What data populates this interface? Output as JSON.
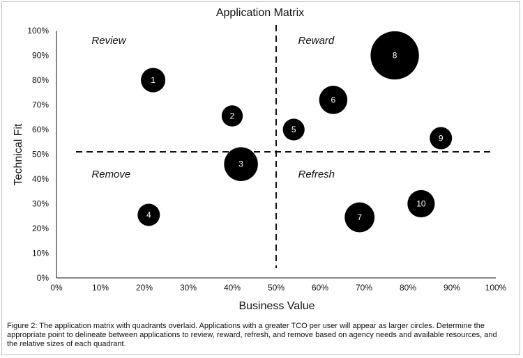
{
  "chart_data": {
    "type": "scatter",
    "title": "Application Matrix",
    "xlabel": "Business Value",
    "ylabel": "Technical Fit",
    "xlim": [
      0,
      100
    ],
    "ylim": [
      0,
      100
    ],
    "x_ticks": [
      "0%",
      "10%",
      "20%",
      "30%",
      "40%",
      "50%",
      "60%",
      "70%",
      "80%",
      "90%",
      "100%"
    ],
    "y_ticks": [
      "0%",
      "10%",
      "20%",
      "30%",
      "40%",
      "50%",
      "60%",
      "70%",
      "80%",
      "90%",
      "100%"
    ],
    "grid": false,
    "divider_x": 50,
    "divider_y": 51,
    "marker_color": "#000000",
    "quadrants": [
      {
        "label": "Review",
        "x": 8,
        "y": 96
      },
      {
        "label": "Reward",
        "x": 55,
        "y": 96
      },
      {
        "label": "Remove",
        "x": 8,
        "y": 42
      },
      {
        "label": "Refresh",
        "x": 55,
        "y": 42
      }
    ],
    "points": [
      {
        "label": "1",
        "x": 22,
        "y": 80,
        "size": 1.2
      },
      {
        "label": "2",
        "x": 40,
        "y": 65.5,
        "size": 0.9
      },
      {
        "label": "3",
        "x": 42,
        "y": 46,
        "size": 2.3
      },
      {
        "label": "4",
        "x": 21,
        "y": 25.5,
        "size": 1.0
      },
      {
        "label": "5",
        "x": 54,
        "y": 60,
        "size": 0.95
      },
      {
        "label": "6",
        "x": 63,
        "y": 72,
        "size": 1.6
      },
      {
        "label": "7",
        "x": 69,
        "y": 24.5,
        "size": 1.8
      },
      {
        "label": "8",
        "x": 77,
        "y": 90,
        "size": 4.7
      },
      {
        "label": "9",
        "x": 87.5,
        "y": 56.5,
        "size": 1.0
      },
      {
        "label": "10",
        "x": 83,
        "y": 30,
        "size": 1.5
      }
    ]
  },
  "caption": "Figure 2: The application matrix with quadrants overlaid. Applications with a greater TCO per user will appear as larger circles. Determine the appropriate point to delineate between applications to review, reward, refresh, and remove based on agency needs and available resources, and the relative sizes of each quadrant."
}
